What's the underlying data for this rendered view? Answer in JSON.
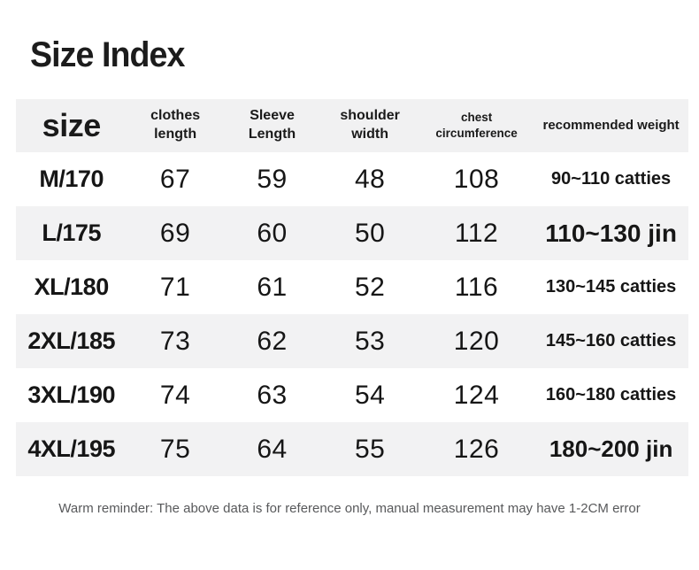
{
  "page": {
    "title": "Size Index",
    "footer_note": "Warm reminder: The above data is for reference only, manual measurement may have 1-2CM error"
  },
  "colors": {
    "background": "#ffffff",
    "header_bg": "#f1f1f2",
    "row_stripe": "#f2f2f3",
    "text": "#161616",
    "footer_text": "#58595b"
  },
  "table": {
    "headers": [
      "size",
      "clothes length",
      "Sleeve Length",
      "shoulder width",
      "chest circumference",
      "recommended weight"
    ],
    "rows": [
      {
        "cells": [
          "M/170",
          "67",
          "59",
          "48",
          "108",
          "90~110 catties"
        ]
      },
      {
        "cells": [
          "L/175",
          "69",
          "60",
          "50",
          "112",
          "110~130 jin"
        ]
      },
      {
        "cells": [
          "XL/180",
          "71",
          "61",
          "52",
          "116",
          "130~145 catties"
        ]
      },
      {
        "cells": [
          "2XL/185",
          "73",
          "62",
          "53",
          "120",
          "145~160 catties"
        ]
      },
      {
        "cells": [
          "3XL/190",
          "74",
          "63",
          "54",
          "124",
          "160~180 catties"
        ]
      },
      {
        "cells": [
          "4XL/195",
          "75",
          "64",
          "55",
          "126",
          "180~200 jin"
        ]
      }
    ]
  }
}
